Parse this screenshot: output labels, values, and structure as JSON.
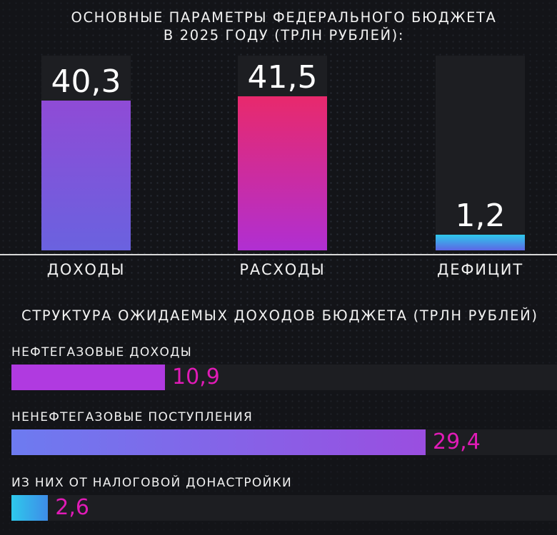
{
  "title_line1": "ОСНОВНЫЕ ПАРАМЕТРЫ ФЕДЕРАЛЬНОГО БЮДЖЕТА",
  "title_line2": "В 2025 ГОДУ  (ТРЛН РУБЛЕЙ):",
  "subtitle": "СТРУКТУРА ОЖИДАЕМЫХ ДОХОДОВ БЮДЖЕТА (ТРЛН РУБЛЕЙ)",
  "chart_data": [
    {
      "type": "bar",
      "title": "ОСНОВНЫЕ ПАРАМЕТРЫ ФЕДЕРАЛЬНОГО БЮДЖЕТА В 2025 ГОДУ  (ТРЛН РУБЛЕЙ):",
      "categories": [
        "ДОХОДЫ",
        "РАСХОДЫ",
        "ДЕФИЦИТ"
      ],
      "values": [
        40.3,
        41.5,
        1.2
      ],
      "value_labels": [
        "40,3",
        "41,5",
        "1,2"
      ],
      "ylim": [
        0,
        50
      ],
      "grid": false,
      "colors": [
        [
          "#8f4bd6",
          "#6a62df"
        ],
        [
          "#e8296c",
          "#b02fd2"
        ],
        [
          "#2ec9ec",
          "#5d66e5"
        ]
      ]
    },
    {
      "type": "bar",
      "orientation": "horizontal",
      "title": "СТРУКТУРА ОЖИДАЕМЫХ ДОХОДОВ БЮДЖЕТА (ТРЛН РУБЛЕЙ)",
      "categories": [
        "НЕФТЕГАЗОВЫЕ ДОХОДЫ",
        "НЕНЕФТЕГАЗОВЫЕ ПОСТУПЛЕНИЯ",
        "ИЗ НИХ ОТ НАЛОГОВОЙ ДОНАСТРОЙКИ"
      ],
      "values": [
        10.9,
        29.4,
        2.6
      ],
      "value_labels": [
        "10,9",
        "29,4",
        "2,6"
      ],
      "xlim": [
        0,
        40
      ],
      "grid": false,
      "colors": [
        [
          "#b03ae0",
          "#b03ae0"
        ],
        [
          "#6d7bf0",
          "#9a4ee0"
        ],
        [
          "#2ec9ec",
          "#3e8ce8"
        ]
      ],
      "label_color": "#e01bb6"
    }
  ]
}
